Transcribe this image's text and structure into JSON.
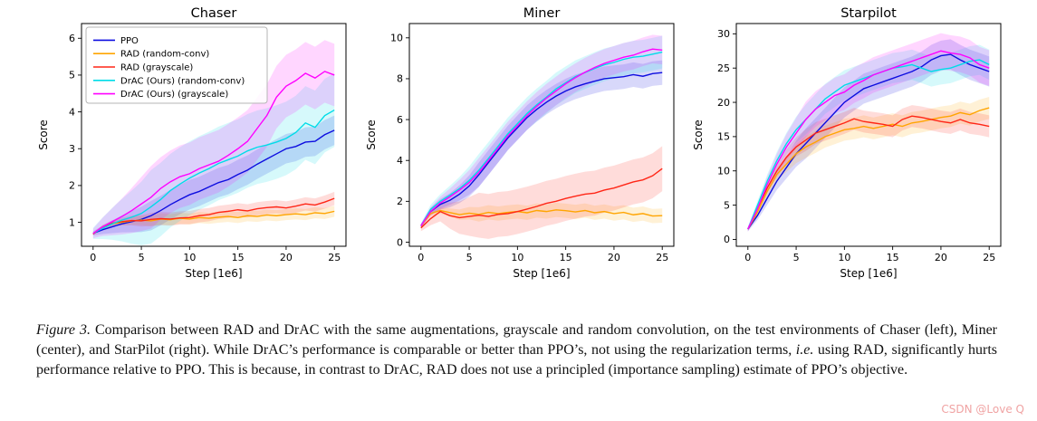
{
  "watermark": {
    "text": "CSDN @Love Q",
    "color": "#f0a3a3"
  },
  "caption": {
    "parts": [
      {
        "text": "Figure 3.",
        "style": "italic"
      },
      {
        "text": " Comparison between RAD and DrAC with the same augmentations, grayscale and random convolution, on the test environments of Chaser (left), Miner (center), and StarPilot (right). While DrAC’s performance is comparable or better than PPO’s, not using the regularization terms, ",
        "style": "normal"
      },
      {
        "text": "i.e.",
        "style": "italic"
      },
      {
        "text": " using RAD, significantly hurts performance relative to PPO. This is because, in contrast to DrAC, RAD does not use a principled (importance sampling) estimate of PPO’s objective.",
        "style": "normal"
      }
    ]
  },
  "chart_data": [
    {
      "type": "line",
      "title": "Chaser",
      "xlabel": "Step [1e6]",
      "ylabel": "Score",
      "x": [
        0,
        1,
        2,
        3,
        4,
        5,
        6,
        7,
        8,
        9,
        10,
        11,
        12,
        13,
        14,
        15,
        16,
        17,
        18,
        19,
        20,
        21,
        22,
        23,
        24,
        25
      ],
      "xlim": [
        -1.2,
        26.2
      ],
      "ylim": [
        0.35,
        6.4
      ],
      "xticks": [
        0,
        5,
        10,
        15,
        20,
        25
      ],
      "yticks": [
        1,
        2,
        3,
        4,
        5,
        6
      ],
      "legend": {
        "visible": true,
        "position": "upper-left"
      },
      "series": [
        {
          "name": "PPO",
          "color": "#0d0de0",
          "band": 0.4,
          "values": [
            0.7,
            0.8,
            0.88,
            0.96,
            1.02,
            1.08,
            1.18,
            1.32,
            1.48,
            1.62,
            1.75,
            1.84,
            1.96,
            2.08,
            2.16,
            2.3,
            2.42,
            2.58,
            2.72,
            2.86,
            3.0,
            3.06,
            3.18,
            3.2,
            3.38,
            3.5
          ]
        },
        {
          "name": "RAD (random-conv)",
          "color": "#ffa502",
          "band": 0.15,
          "values": [
            0.7,
            0.86,
            0.96,
            1.0,
            1.04,
            1.06,
            1.04,
            1.09,
            1.07,
            1.11,
            1.09,
            1.13,
            1.11,
            1.14,
            1.16,
            1.13,
            1.18,
            1.16,
            1.2,
            1.18,
            1.21,
            1.23,
            1.21,
            1.26,
            1.24,
            1.3
          ]
        },
        {
          "name": "RAD (grayscale)",
          "color": "#ff2616",
          "band": 0.18,
          "values": [
            0.68,
            0.88,
            0.98,
            1.02,
            1.05,
            1.04,
            1.08,
            1.1,
            1.09,
            1.12,
            1.13,
            1.18,
            1.21,
            1.27,
            1.3,
            1.34,
            1.31,
            1.37,
            1.4,
            1.42,
            1.39,
            1.44,
            1.5,
            1.47,
            1.55,
            1.65
          ]
        },
        {
          "name": "DrAC (Ours) (random-conv)",
          "color": "#00dce8",
          "band": 1.0,
          "values": [
            0.7,
            0.84,
            0.96,
            1.06,
            1.14,
            1.24,
            1.42,
            1.62,
            1.86,
            2.04,
            2.2,
            2.34,
            2.46,
            2.6,
            2.7,
            2.8,
            2.94,
            3.04,
            3.1,
            3.18,
            3.28,
            3.44,
            3.7,
            3.58,
            3.9,
            4.05
          ]
        },
        {
          "name": "DrAC (Ours) (grayscale)",
          "color": "#ff00ff",
          "band": 0.85,
          "values": [
            0.7,
            0.88,
            1.02,
            1.16,
            1.32,
            1.5,
            1.68,
            1.92,
            2.1,
            2.24,
            2.32,
            2.46,
            2.56,
            2.66,
            2.82,
            3.0,
            3.2,
            3.55,
            3.9,
            4.4,
            4.7,
            4.85,
            5.05,
            4.92,
            5.1,
            5.0
          ]
        }
      ]
    },
    {
      "type": "line",
      "title": "Miner",
      "xlabel": "Step [1e6]",
      "ylabel": "Score",
      "x": [
        0,
        1,
        2,
        3,
        4,
        5,
        6,
        7,
        8,
        9,
        10,
        11,
        12,
        13,
        14,
        15,
        16,
        17,
        18,
        19,
        20,
        21,
        22,
        23,
        24,
        25
      ],
      "xlim": [
        -1.2,
        26.2
      ],
      "ylim": [
        -0.2,
        10.7
      ],
      "xticks": [
        0,
        5,
        10,
        15,
        20,
        25
      ],
      "yticks": [
        0,
        2,
        4,
        6,
        8,
        10
      ],
      "legend": {
        "visible": false
      },
      "series": [
        {
          "name": "PPO",
          "color": "#0d0de0",
          "band": 0.6,
          "values": [
            0.8,
            1.5,
            1.85,
            2.05,
            2.35,
            2.75,
            3.3,
            3.9,
            4.5,
            5.1,
            5.6,
            6.1,
            6.5,
            6.85,
            7.15,
            7.4,
            7.6,
            7.75,
            7.88,
            8.0,
            8.05,
            8.1,
            8.2,
            8.12,
            8.25,
            8.3
          ]
        },
        {
          "name": "RAD (random-conv)",
          "color": "#ffa502",
          "band": 0.35,
          "values": [
            0.8,
            1.4,
            1.55,
            1.45,
            1.35,
            1.42,
            1.36,
            1.46,
            1.4,
            1.46,
            1.5,
            1.44,
            1.55,
            1.5,
            1.58,
            1.54,
            1.48,
            1.55,
            1.44,
            1.5,
            1.4,
            1.46,
            1.34,
            1.4,
            1.28,
            1.3
          ]
        },
        {
          "name": "RAD (grayscale)",
          "color": "#ff2616",
          "band": 1.1,
          "values": [
            0.7,
            1.15,
            1.5,
            1.3,
            1.2,
            1.26,
            1.32,
            1.26,
            1.36,
            1.4,
            1.5,
            1.62,
            1.75,
            1.9,
            2.0,
            2.14,
            2.25,
            2.35,
            2.4,
            2.55,
            2.65,
            2.8,
            2.95,
            3.05,
            3.25,
            3.6
          ]
        },
        {
          "name": "DrAC (Ours) (random-conv)",
          "color": "#00dce8",
          "band": 0.8,
          "values": [
            0.8,
            1.6,
            2.0,
            2.3,
            2.62,
            3.02,
            3.52,
            4.1,
            4.7,
            5.3,
            5.8,
            6.3,
            6.72,
            7.1,
            7.5,
            7.8,
            8.1,
            8.3,
            8.5,
            8.68,
            8.8,
            8.95,
            9.05,
            9.1,
            9.2,
            9.3
          ]
        },
        {
          "name": "DrAC (Ours) (grayscale)",
          "color": "#ff00ff",
          "band": 0.7,
          "values": [
            0.8,
            1.5,
            1.92,
            2.22,
            2.55,
            2.92,
            3.42,
            4.0,
            4.6,
            5.2,
            5.7,
            6.2,
            6.65,
            7.05,
            7.4,
            7.75,
            8.05,
            8.32,
            8.55,
            8.75,
            8.9,
            9.05,
            9.15,
            9.32,
            9.45,
            9.4
          ]
        }
      ]
    },
    {
      "type": "line",
      "title": "Starpilot",
      "xlabel": "Step [1e6]",
      "ylabel": "Score",
      "x": [
        0,
        1,
        2,
        3,
        4,
        5,
        6,
        7,
        8,
        9,
        10,
        11,
        12,
        13,
        14,
        15,
        16,
        17,
        18,
        19,
        20,
        21,
        22,
        23,
        24,
        25
      ],
      "xlim": [
        -1.2,
        26.2
      ],
      "ylim": [
        -1,
        31.5
      ],
      "xticks": [
        0,
        5,
        10,
        15,
        20,
        25
      ],
      "yticks": [
        0,
        5,
        10,
        15,
        20,
        25,
        30
      ],
      "legend": {
        "visible": false
      },
      "series": [
        {
          "name": "PPO",
          "color": "#0d0de0",
          "band": 2.2,
          "values": [
            1.5,
            3.5,
            6.0,
            8.5,
            10.5,
            12.5,
            14.0,
            15.5,
            17.0,
            18.5,
            20.0,
            21.0,
            22.0,
            22.5,
            23.0,
            23.5,
            24.0,
            24.5,
            25.2,
            26.2,
            26.8,
            27.0,
            26.2,
            25.5,
            25.0,
            24.5
          ]
        },
        {
          "name": "RAD (random-conv)",
          "color": "#ffa502",
          "band": 1.6,
          "values": [
            1.5,
            4.0,
            7.0,
            9.5,
            11.0,
            12.5,
            13.5,
            14.2,
            15.0,
            15.5,
            16.0,
            16.2,
            16.5,
            16.2,
            16.5,
            16.8,
            16.5,
            17.0,
            17.2,
            17.5,
            17.8,
            18.0,
            18.5,
            18.2,
            18.8,
            19.2
          ]
        },
        {
          "name": "RAD (grayscale)",
          "color": "#ff2616",
          "band": 1.6,
          "values": [
            1.5,
            4.5,
            7.5,
            10.0,
            12.0,
            13.5,
            14.5,
            15.5,
            16.0,
            16.5,
            17.0,
            17.6,
            17.2,
            17.0,
            16.8,
            16.5,
            17.5,
            18.0,
            17.8,
            17.5,
            17.2,
            17.0,
            17.5,
            17.0,
            16.8,
            16.5
          ]
        },
        {
          "name": "DrAC (Ours) (random-conv)",
          "color": "#00dce8",
          "band": 2.2,
          "values": [
            1.5,
            5.0,
            8.5,
            11.5,
            14.0,
            16.0,
            17.5,
            19.0,
            20.5,
            21.5,
            22.5,
            23.0,
            23.5,
            24.0,
            24.5,
            25.0,
            25.2,
            25.5,
            25.0,
            24.5,
            24.8,
            25.0,
            25.5,
            26.0,
            26.2,
            25.5
          ]
        },
        {
          "name": "DrAC (Ours) (grayscale)",
          "color": "#ff00ff",
          "band": 2.6,
          "values": [
            1.5,
            4.5,
            8.0,
            11.0,
            13.5,
            15.5,
            17.5,
            19.0,
            20.0,
            21.0,
            21.5,
            22.5,
            23.2,
            24.0,
            24.5,
            25.0,
            25.5,
            26.0,
            26.5,
            27.0,
            27.5,
            27.2,
            27.0,
            26.5,
            25.5,
            25.0
          ]
        }
      ]
    }
  ]
}
